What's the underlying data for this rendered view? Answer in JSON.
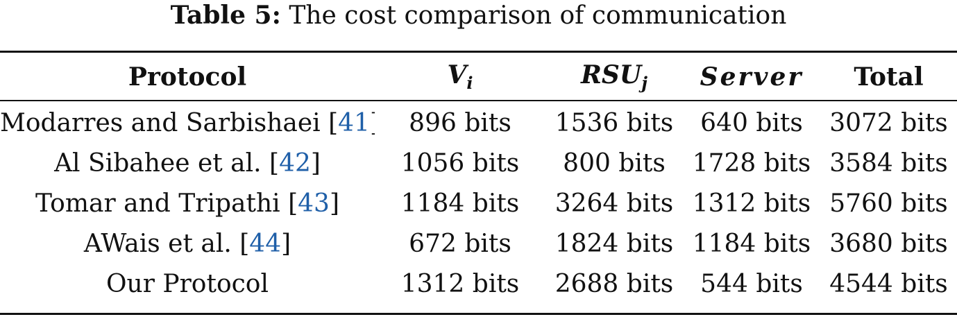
{
  "caption": {
    "label": "Table 5:",
    "text": "The cost comparison of communication"
  },
  "table": {
    "headers": {
      "protocol": "Protocol",
      "vehicle_base": "V",
      "vehicle_sub": "i",
      "rsu_base": "RSU",
      "rsu_sub": "j",
      "server": "Server",
      "total": "Total"
    },
    "rows": [
      {
        "name": "Modarres and Sarbishaei",
        "ref": "41",
        "vehicle": "896 bits",
        "rsu": "1536 bits",
        "server": "640 bits",
        "total": "3072 bits"
      },
      {
        "name": "Al Sibahee et al.",
        "ref": "42",
        "vehicle": "1056 bits",
        "rsu": "800 bits",
        "server": "1728 bits",
        "total": "3584 bits"
      },
      {
        "name": "Tomar and Tripathi",
        "ref": "43",
        "vehicle": "1184 bits",
        "rsu": "3264 bits",
        "server": "1312 bits",
        "total": "5760 bits"
      },
      {
        "name": "AWais et al.",
        "ref": "44",
        "vehicle": "672 bits",
        "rsu": "1824 bits",
        "server": "1184 bits",
        "total": "3680 bits"
      },
      {
        "name": "Our Protocol",
        "ref": "",
        "vehicle": "1312 bits",
        "rsu": "2688 bits",
        "server": "544 bits",
        "total": "4544 bits"
      }
    ]
  },
  "colors": {
    "text": "#111111",
    "reference_link": "#1f5fa8"
  }
}
